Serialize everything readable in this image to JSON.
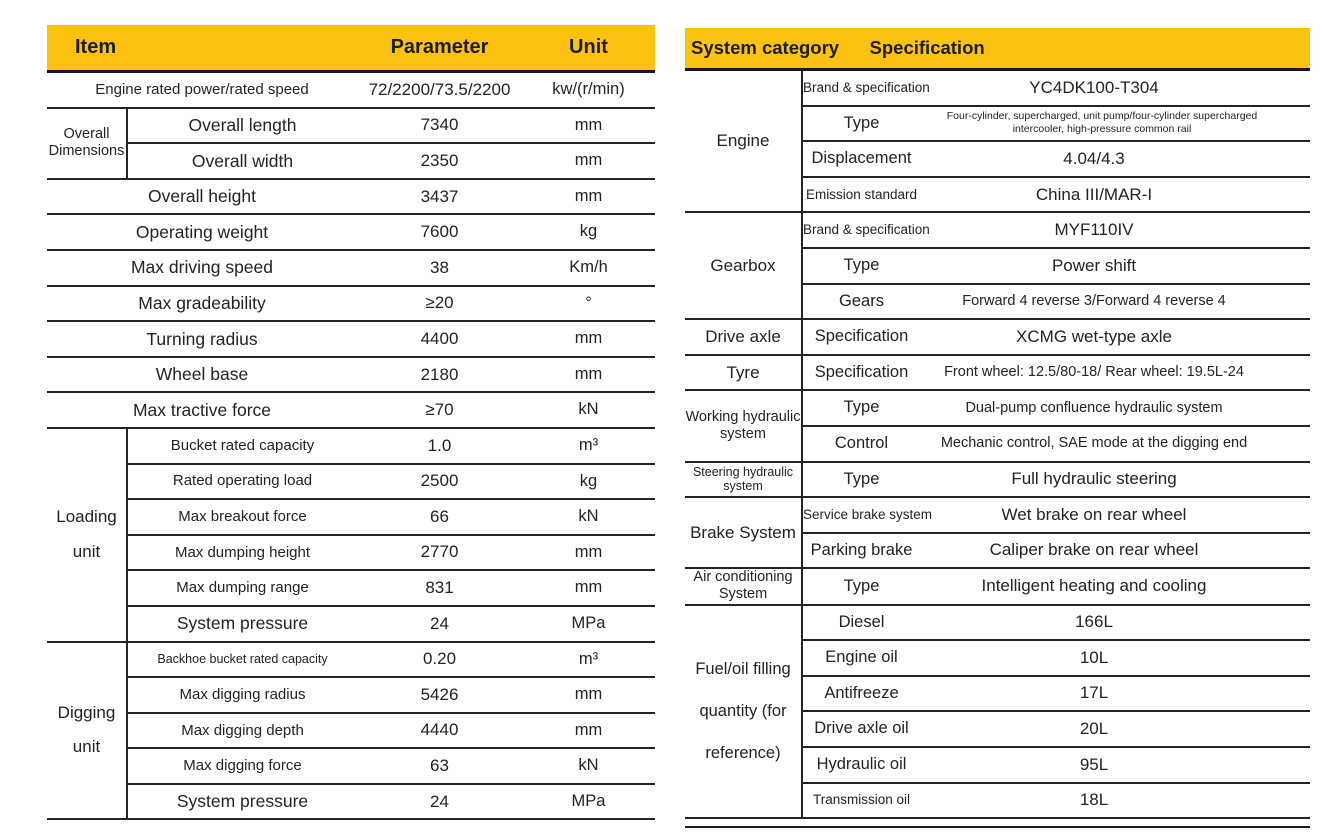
{
  "colors": {
    "header_yellow": "#fcc211",
    "line_black": "#242424",
    "text": "#232323"
  },
  "left_table": {
    "header": {
      "item": "Item",
      "parameter": "Parameter",
      "unit": "Unit"
    },
    "sections": [
      {
        "group": "",
        "rows": [
          {
            "item": "Engine rated power/rated speed",
            "param": "72/2200/73.5/2200",
            "unit": "kw/(r/min)",
            "is": "i-md"
          }
        ]
      },
      {
        "group": "Overall Dimensions",
        "gclass": "g-md",
        "rows": [
          {
            "item": "Overall length",
            "param": "7340",
            "unit": "mm",
            "is": "i-lg"
          },
          {
            "item": "Overall width",
            "param": "2350",
            "unit": "mm",
            "is": "i-lg"
          }
        ]
      },
      {
        "group": "",
        "rows": [
          {
            "item": "Overall height",
            "param": "3437",
            "unit": "mm",
            "is": "i-lg"
          }
        ]
      },
      {
        "group": "",
        "rows": [
          {
            "item": "Operating weight",
            "param": "7600",
            "unit": "kg",
            "is": "i-lg"
          }
        ]
      },
      {
        "group": "",
        "rows": [
          {
            "item": "Max driving speed",
            "param": "38",
            "unit": "Km/h",
            "is": "i-lg"
          }
        ]
      },
      {
        "group": "",
        "rows": [
          {
            "item": "Max gradeability",
            "param": "≥20",
            "unit": "°",
            "is": "i-lg"
          }
        ]
      },
      {
        "group": "",
        "rows": [
          {
            "item": "Turning radius",
            "param": "4400",
            "unit": "mm",
            "is": "i-lg"
          }
        ]
      },
      {
        "group": "",
        "rows": [
          {
            "item": "Wheel base",
            "param": "2180",
            "unit": "mm",
            "is": "i-lg"
          }
        ]
      },
      {
        "group": "",
        "rows": [
          {
            "item": "Max tractive force",
            "param": "≥70",
            "unit": "kN",
            "is": "i-lg"
          }
        ]
      },
      {
        "group": "Loading unit",
        "gclass": "g-lg g-tall",
        "rows": [
          {
            "item": "Bucket rated capacity",
            "param": "1.0",
            "unit": "m³",
            "is": "i-md"
          },
          {
            "item": "Rated operating load",
            "param": "2500",
            "unit": "kg",
            "is": "i-md"
          },
          {
            "item": "Max breakout force",
            "param": "66",
            "unit": "kN",
            "is": "i-md"
          },
          {
            "item": "Max dumping height",
            "param": "2770",
            "unit": "mm",
            "is": "i-md"
          },
          {
            "item": "Max dumping range",
            "param": "831",
            "unit": "mm",
            "is": "i-md"
          },
          {
            "item": "System pressure",
            "param": "24",
            "unit": "MPa",
            "is": "i-lg"
          }
        ]
      },
      {
        "group": "Digging unit",
        "gclass": "g-lg g-tall",
        "rows": [
          {
            "item": "Backhoe bucket rated capacity",
            "param": "0.20",
            "unit": "m³",
            "is": "i-sm"
          },
          {
            "item": "Max digging radius",
            "param": "5426",
            "unit": "mm",
            "is": "i-md"
          },
          {
            "item": "Max digging depth",
            "param": "4440",
            "unit": "mm",
            "is": "i-md"
          },
          {
            "item": "Max digging force",
            "param": "63",
            "unit": "kN",
            "is": "i-md"
          },
          {
            "item": "System pressure",
            "param": "24",
            "unit": "MPa",
            "is": "i-lg"
          }
        ]
      }
    ]
  },
  "right_table": {
    "header": {
      "category": "System category",
      "specification": "Specification"
    },
    "sections": [
      {
        "group": "Engine",
        "gclass": "g-lg",
        "rows": [
          {
            "label": "Brand & specification",
            "ls": "l-md",
            "value": "YC4DK100-T304",
            "vs": "v-lg"
          },
          {
            "label": "Type",
            "ls": "l-lg",
            "value": "Four-cylinder, supercharged, unit pump/four-cylinder supercharged intercooler, high-pressure common rail",
            "vs": "v-xs"
          },
          {
            "label": "Displacement",
            "ls": "l-lg",
            "value": "4.04/4.3",
            "vs": "v-lg"
          },
          {
            "label": "Emission standard",
            "ls": "l-md",
            "value": "China III/MAR-I",
            "vs": "v-lg"
          }
        ]
      },
      {
        "group": "Gearbox",
        "gclass": "g-lg",
        "rows": [
          {
            "label": "Brand & specification",
            "ls": "l-md",
            "value": "MYF110IV",
            "vs": "v-lg"
          },
          {
            "label": "Type",
            "ls": "l-lg",
            "value": "Power shift",
            "vs": "v-lg"
          },
          {
            "label": "Gears",
            "ls": "l-lg",
            "value": "Forward 4 reverse 3/Forward 4 reverse 4",
            "vs": "v-md"
          }
        ]
      },
      {
        "group": "Drive axle",
        "gclass": "g-lg",
        "rows": [
          {
            "label": "Specification",
            "ls": "l-lg",
            "value": "XCMG wet-type axle",
            "vs": "v-lg"
          }
        ]
      },
      {
        "group": "Tyre",
        "gclass": "g-lg",
        "rows": [
          {
            "label": "Specification",
            "ls": "l-lg",
            "value": "Front wheel: 12.5/80-18/ Rear wheel: 19.5L-24",
            "vs": "v-md"
          }
        ]
      },
      {
        "group": "Working hydraulic system",
        "gclass": "g-md",
        "rows": [
          {
            "label": "Type",
            "ls": "l-lg",
            "value": "Dual-pump confluence hydraulic system",
            "vs": "v-md"
          },
          {
            "label": "Control",
            "ls": "l-lg",
            "value": "Mechanic control, SAE mode at the digging end",
            "vs": "v-md"
          }
        ]
      },
      {
        "group": "Steering hydraulic system",
        "gclass": "g-sm",
        "rows": [
          {
            "label": "Type",
            "ls": "l-lg",
            "value": "Full hydraulic steering",
            "vs": "v-lg"
          }
        ]
      },
      {
        "group": "Brake System",
        "gclass": "g-lg",
        "rows": [
          {
            "label": "Service brake system",
            "ls": "l-md",
            "value": "Wet brake on rear wheel",
            "vs": "v-lg"
          },
          {
            "label": "Parking brake",
            "ls": "l-lg",
            "value": "Caliper brake on rear wheel",
            "vs": "v-lg"
          }
        ]
      },
      {
        "group": "Air conditioning System",
        "gclass": "g-md",
        "rows": [
          {
            "label": "Type",
            "ls": "l-lg",
            "value": "Intelligent heating and cooling",
            "vs": "v-lg"
          }
        ]
      },
      {
        "group": "Fuel/oil filling quantity (for reference)",
        "gclass": "g-fuel",
        "rows": [
          {
            "label": "Diesel",
            "ls": "l-lg",
            "value": "166L",
            "vs": "v-lg"
          },
          {
            "label": "Engine oil",
            "ls": "l-lg",
            "value": "10L",
            "vs": "v-lg"
          },
          {
            "label": "Antifreeze",
            "ls": "l-lg",
            "value": "17L",
            "vs": "v-lg"
          },
          {
            "label": "Drive axle oil",
            "ls": "l-lg",
            "value": "20L",
            "vs": "v-lg"
          },
          {
            "label": "Hydraulic oil",
            "ls": "l-lg",
            "value": "95L",
            "vs": "v-lg"
          },
          {
            "label": "Transmission oil",
            "ls": "l-md",
            "value": "18L",
            "vs": "v-lg"
          }
        ]
      }
    ]
  }
}
